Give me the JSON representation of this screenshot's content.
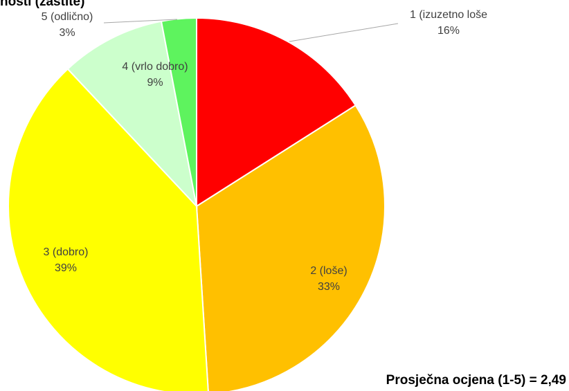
{
  "chart_data": {
    "type": "pie",
    "title": "nosti (zaštite)",
    "categories": [
      "1 (izuzetno loše",
      "2 (loše)",
      "3 (dobro)",
      "4 (vrlo dobro)",
      "5 (odlično)"
    ],
    "values": [
      16,
      33,
      39,
      9,
      3
    ],
    "value_labels": [
      "16%",
      "33%",
      "39%",
      "9%",
      "3%"
    ],
    "colors": [
      "#ff0000",
      "#ffc000",
      "#ffff00",
      "#ccffcc",
      "#5ef35e"
    ],
    "annotation": "Prosječna ocjena (1-5) = 2,49"
  }
}
